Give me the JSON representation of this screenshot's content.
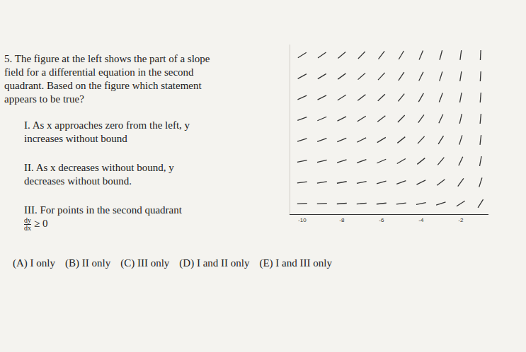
{
  "document": {
    "question": {
      "lines": [
        "5. The figure at the left shows the part of a slope",
        "field for a differential equation in the second",
        "quadrant. Based on the figure which statement",
        "appears to be true?"
      ]
    },
    "statements": [
      {
        "lines": [
          "I. As x approaches zero from the left, y",
          "increases without bound"
        ]
      },
      {
        "lines": [
          "II. As x decreases without bound, y",
          "decreases without bound."
        ]
      },
      {
        "lines": [
          "III. For points in the second quadrant"
        ],
        "fraction": {
          "numerator": "dy",
          "denominator": "dx",
          "relation": "≥ 0"
        }
      }
    ],
    "choices": [
      "(A) I only",
      "(B) II only",
      "(C) III only",
      "(D) I and II only",
      "(E) I and III only"
    ]
  },
  "chart_data": {
    "type": "slope_field",
    "x": [
      -10,
      -9,
      -8,
      -7,
      -6,
      -5,
      -4,
      -3,
      -2,
      -1
    ],
    "y": [
      0.5,
      1.5,
      2.5,
      3.5,
      4.5,
      5.5,
      6.5,
      7.5
    ],
    "slopes": [
      [
        0.05,
        0.06,
        0.07,
        0.08,
        0.1,
        0.13,
        0.18,
        0.3,
        0.6,
        1.5
      ],
      [
        0.12,
        0.14,
        0.17,
        0.2,
        0.25,
        0.33,
        0.45,
        0.7,
        1.3,
        3
      ],
      [
        0.2,
        0.23,
        0.28,
        0.33,
        0.4,
        0.55,
        0.75,
        1.1,
        2,
        5
      ],
      [
        0.28,
        0.32,
        0.38,
        0.45,
        0.56,
        0.75,
        1,
        1.5,
        3,
        8
      ],
      [
        0.35,
        0.4,
        0.48,
        0.58,
        0.72,
        0.95,
        1.3,
        2,
        4,
        10
      ],
      [
        0.42,
        0.48,
        0.58,
        0.7,
        0.88,
        1.15,
        1.6,
        2.5,
        5,
        12
      ],
      [
        0.5,
        0.57,
        0.68,
        0.82,
        1,
        1.35,
        1.9,
        3,
        6,
        15
      ],
      [
        0.58,
        0.65,
        0.78,
        0.95,
        1.2,
        1.55,
        2.2,
        3.5,
        7,
        18
      ]
    ],
    "xlim": [
      -10.6,
      -0.6
    ],
    "ylim": [
      0,
      8
    ],
    "xticks": [
      -10,
      -8,
      -6,
      -4,
      -2
    ],
    "tick_labels": "x",
    "color": "#333333"
  }
}
